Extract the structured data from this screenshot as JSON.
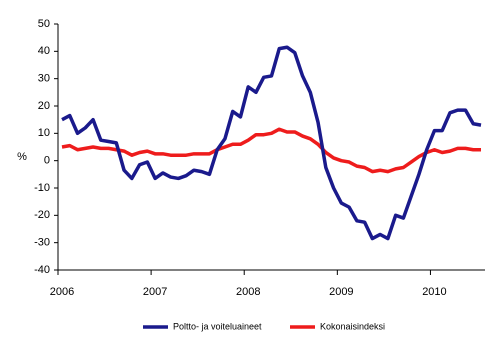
{
  "chart_data": {
    "type": "line",
    "y_label": "%",
    "categories": [
      "2006",
      null,
      null,
      null,
      null,
      null,
      null,
      null,
      null,
      null,
      null,
      null,
      "2007",
      null,
      null,
      null,
      null,
      null,
      null,
      null,
      null,
      null,
      null,
      null,
      "2008",
      null,
      null,
      null,
      null,
      null,
      null,
      null,
      null,
      null,
      null,
      null,
      "2009",
      null,
      null,
      null,
      null,
      null,
      null,
      null,
      null,
      null,
      null,
      null,
      "2010",
      null,
      null,
      null,
      null,
      null,
      null
    ],
    "series": [
      {
        "name": "Poltto- ja voiteluaineet",
        "color": "#1a1a8c",
        "values": [
          15,
          16.5,
          10,
          12,
          15,
          7.5,
          7,
          6.5,
          -3.5,
          -6.5,
          -1.5,
          -0.5,
          -6.5,
          -4.5,
          -6,
          -6.5,
          -5.5,
          -3.5,
          -4,
          -5,
          4,
          8,
          18,
          16,
          27,
          25,
          30.5,
          31,
          41,
          41.5,
          39.5,
          31,
          25,
          14,
          -2.5,
          -10,
          -15.5,
          -17,
          -22,
          -22.5,
          -28.5,
          -27,
          -28.5,
          -20,
          -21,
          -13,
          -5,
          4,
          11,
          11,
          17.5,
          18.5,
          18.5,
          13.5,
          13
        ]
      },
      {
        "name": "Kokonaisindeksi",
        "color": "#ee1c1c",
        "values": [
          5,
          5.5,
          4,
          4.5,
          5,
          4.5,
          4.5,
          4,
          3.5,
          2,
          3,
          3.5,
          2.5,
          2.5,
          2,
          2,
          2,
          2.5,
          2.5,
          2.5,
          4,
          5,
          6,
          6,
          7.5,
          9.5,
          9.5,
          10,
          11.5,
          10.5,
          10.5,
          9,
          8,
          6,
          3,
          1,
          0,
          -0.5,
          -2,
          -2.5,
          -4,
          -3.5,
          -4,
          -3,
          -2.5,
          -0.5,
          1.5,
          3,
          4,
          3,
          3.5,
          4.5,
          4.5,
          4,
          4
        ]
      }
    ],
    "ylim": [
      -40,
      50
    ],
    "yticks": [
      -40,
      -30,
      -20,
      -10,
      0,
      10,
      20,
      30,
      40,
      50
    ],
    "legend": "bottom",
    "grid": false
  }
}
